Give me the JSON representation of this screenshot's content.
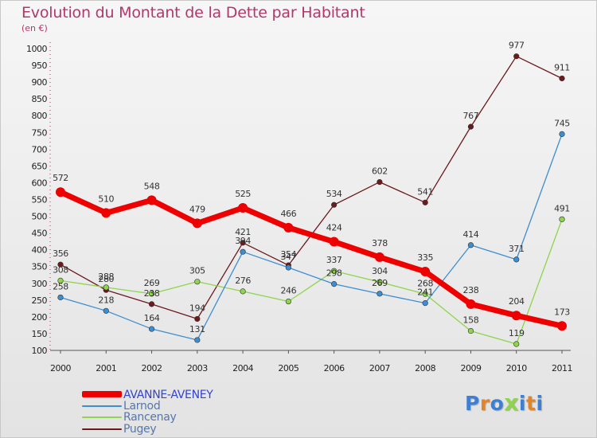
{
  "chart_data": {
    "type": "line",
    "title": "Evolution du Montant de la Dette par Habitant",
    "subtitle": "(en €)",
    "x": [
      "2000",
      "2001",
      "2002",
      "2003",
      "2004",
      "2005",
      "2006",
      "2007",
      "2008",
      "2009",
      "2010",
      "2011"
    ],
    "ylim": [
      100,
      1000
    ],
    "yticks": [
      100,
      150,
      200,
      250,
      300,
      350,
      400,
      450,
      500,
      550,
      600,
      650,
      700,
      750,
      800,
      850,
      900,
      950,
      1000
    ],
    "grid": false,
    "legend_position": "bottom-left",
    "series": [
      {
        "name": "Pugey",
        "color": "#6b1a1e",
        "values": [
          356,
          280,
          238,
          194,
          421,
          354,
          534,
          602,
          541,
          767,
          977,
          911
        ]
      },
      {
        "name": "Rancenay",
        "color": "#8ed44c",
        "values": [
          308,
          288,
          269,
          305,
          276,
          246,
          337,
          304,
          268,
          158,
          119,
          491
        ]
      },
      {
        "name": "Larnod",
        "color": "#3d8ed1",
        "values": [
          258,
          218,
          164,
          131,
          394,
          347,
          298,
          269,
          241,
          414,
          371,
          745
        ]
      },
      {
        "name": "AVANNE-AVENEY",
        "color": "#ee0000",
        "values": [
          572,
          510,
          548,
          479,
          525,
          466,
          424,
          378,
          335,
          238,
          204,
          173
        ]
      }
    ],
    "legend_order": [
      "AVANNE-AVENEY",
      "Larnod",
      "Rancenay",
      "Pugey"
    ]
  },
  "branding": {
    "logo_letters": [
      "P",
      "r",
      "o",
      "x",
      "i",
      "t",
      "i"
    ],
    "logo_colors": [
      "#3d7fd0",
      "#e0852a",
      "#3d7fd0",
      "#8ed44c",
      "#3d7fd0",
      "#e0852a",
      "#3d7fd0"
    ]
  }
}
